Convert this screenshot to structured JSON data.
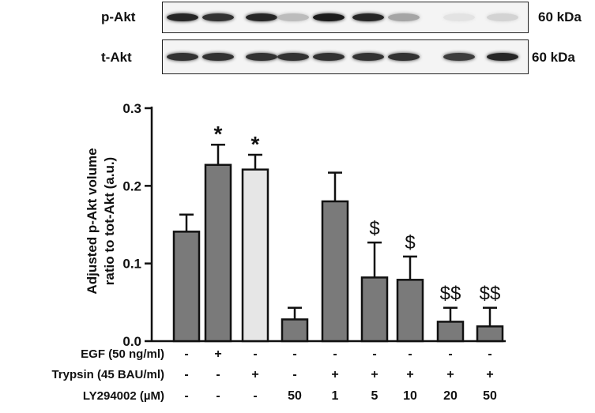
{
  "blots": [
    {
      "label": "p-Akt",
      "kda": "60 kDa",
      "intensity": [
        0.9,
        0.85,
        0.9,
        0.25,
        0.95,
        0.9,
        0.35,
        0.08,
        0.15
      ]
    },
    {
      "label": "t-Akt",
      "kda": "60 kDa",
      "intensity": [
        0.85,
        0.85,
        0.85,
        0.85,
        0.85,
        0.85,
        0.85,
        0.8,
        0.9
      ]
    }
  ],
  "chart_data": {
    "type": "bar",
    "ylabel": "Adjusted p-Akt volume ratio to tot-Akt (a.u.)",
    "ylim": [
      0,
      0.3
    ],
    "yticks": [
      "0.0",
      "0.1",
      "0.2",
      "0.3"
    ],
    "values": [
      0.141,
      0.227,
      0.221,
      0.028,
      0.18,
      0.082,
      0.079,
      0.025,
      0.019
    ],
    "errors": [
      0.022,
      0.026,
      0.019,
      0.015,
      0.037,
      0.045,
      0.03,
      0.018,
      0.024
    ],
    "annotations": [
      "",
      "*",
      "*",
      "",
      "",
      "$",
      "$",
      "$$",
      "$$"
    ],
    "bar_colors": [
      "#7a7a7a",
      "#7a7a7a",
      "#e6e6e6",
      "#7a7a7a",
      "#7a7a7a",
      "#7a7a7a",
      "#7a7a7a",
      "#7a7a7a",
      "#7a7a7a"
    ]
  },
  "conditions": [
    {
      "label": "EGF (50 ng/ml)",
      "values": [
        "-",
        "+",
        "-",
        "-",
        "-",
        "-",
        "-",
        "-",
        "-"
      ]
    },
    {
      "label": "Trypsin (45 BAU/ml)",
      "values": [
        "-",
        "-",
        "+",
        "-",
        "+",
        "+",
        "+",
        "+",
        "+"
      ]
    },
    {
      "label": "LY294002 (µM)",
      "values": [
        "-",
        "-",
        "-",
        "50",
        "1",
        "5",
        "10",
        "20",
        "50"
      ]
    }
  ]
}
